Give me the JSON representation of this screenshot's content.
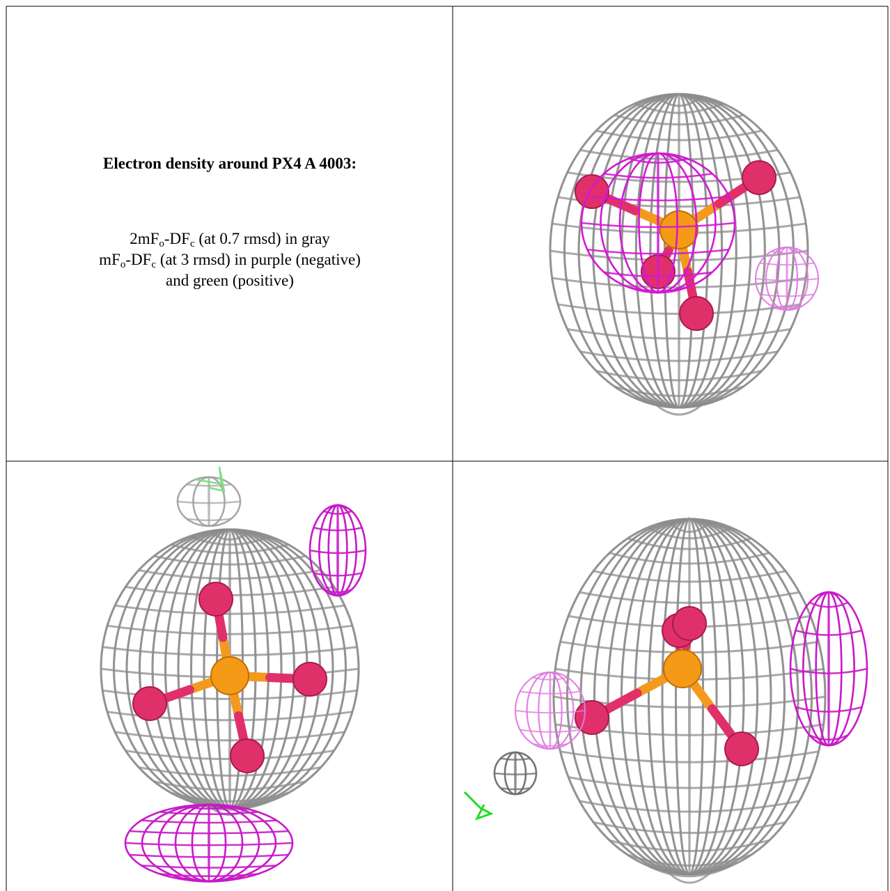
{
  "caption": {
    "title": "Electron density around PX4 A 4003:",
    "lines": [
      [
        "2mF",
        "o",
        "-DF",
        "c",
        " (at 0.7 rmsd) in gray"
      ],
      [
        "mF",
        "o",
        "-DF",
        "c",
        " (at 3 rmsd) in purple (negative)"
      ],
      [
        "and green (positive)"
      ]
    ]
  }
}
